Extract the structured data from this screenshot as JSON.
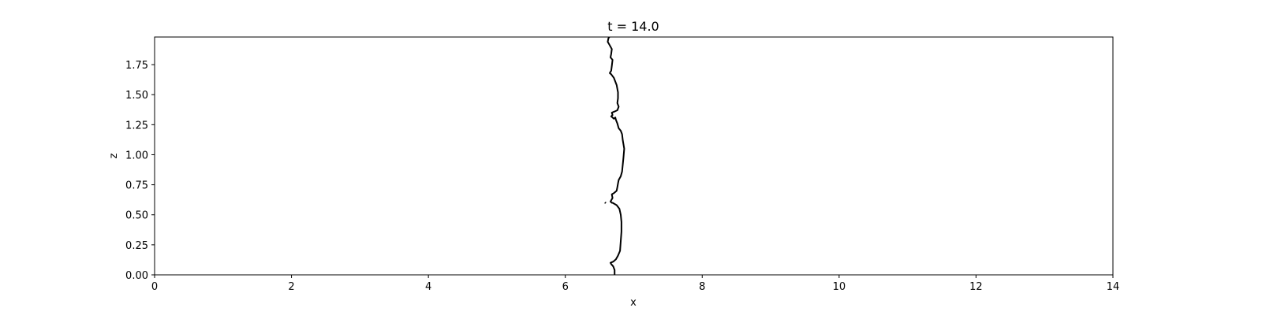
{
  "chart_data": {
    "type": "line",
    "title": "t = 14.0",
    "xlabel": "x",
    "ylabel": "z",
    "xlim": [
      0,
      14
    ],
    "ylim": [
      0,
      1.98
    ],
    "grid": false,
    "x_ticks": [
      {
        "value": 0,
        "label": "0"
      },
      {
        "value": 2,
        "label": "2"
      },
      {
        "value": 4,
        "label": "4"
      },
      {
        "value": 6,
        "label": "6"
      },
      {
        "value": 8,
        "label": "8"
      },
      {
        "value": 10,
        "label": "10"
      },
      {
        "value": 12,
        "label": "12"
      },
      {
        "value": 14,
        "label": "14"
      }
    ],
    "y_ticks": [
      {
        "value": 0.0,
        "label": "0.00"
      },
      {
        "value": 0.25,
        "label": "0.25"
      },
      {
        "value": 0.5,
        "label": "0.50"
      },
      {
        "value": 0.75,
        "label": "0.75"
      },
      {
        "value": 1.0,
        "label": "1.00"
      },
      {
        "value": 1.25,
        "label": "1.25"
      },
      {
        "value": 1.5,
        "label": "1.50"
      },
      {
        "value": 1.75,
        "label": "1.75"
      }
    ],
    "line_color": "#000000",
    "series": [
      {
        "points": [
          [
            6.72,
            0.0
          ],
          [
            6.72,
            0.04
          ],
          [
            6.7,
            0.07
          ],
          [
            6.67,
            0.09
          ],
          [
            6.66,
            0.1
          ],
          [
            6.7,
            0.11
          ],
          [
            6.74,
            0.13
          ],
          [
            6.77,
            0.16
          ],
          [
            6.8,
            0.2
          ],
          [
            6.81,
            0.28
          ],
          [
            6.82,
            0.36
          ],
          [
            6.82,
            0.44
          ],
          [
            6.81,
            0.5
          ],
          [
            6.79,
            0.55
          ],
          [
            6.75,
            0.58
          ],
          [
            6.69,
            0.6
          ],
          [
            6.68,
            0.6
          ],
          [
            6.66,
            0.61
          ],
          [
            6.69,
            0.64
          ],
          [
            6.68,
            0.67
          ],
          [
            6.71,
            0.68
          ],
          [
            6.75,
            0.7
          ],
          [
            6.76,
            0.73
          ],
          [
            6.77,
            0.76
          ],
          [
            6.78,
            0.79
          ],
          [
            6.81,
            0.82
          ],
          [
            6.83,
            0.86
          ],
          [
            6.84,
            0.92
          ],
          [
            6.85,
            0.98
          ],
          [
            6.86,
            1.05
          ],
          [
            6.84,
            1.12
          ],
          [
            6.83,
            1.17
          ],
          [
            6.81,
            1.2
          ],
          [
            6.78,
            1.22
          ],
          [
            6.76,
            1.26
          ],
          [
            6.74,
            1.29
          ],
          [
            6.73,
            1.31
          ],
          [
            6.71,
            1.3
          ],
          [
            6.69,
            1.31
          ],
          [
            6.67,
            1.32
          ],
          [
            6.69,
            1.33
          ],
          [
            6.68,
            1.35
          ],
          [
            6.72,
            1.36
          ],
          [
            6.76,
            1.37
          ],
          [
            6.78,
            1.4
          ],
          [
            6.76,
            1.43
          ],
          [
            6.77,
            1.47
          ],
          [
            6.77,
            1.52
          ],
          [
            6.75,
            1.58
          ],
          [
            6.71,
            1.64
          ],
          [
            6.67,
            1.67
          ],
          [
            6.65,
            1.68
          ],
          [
            6.67,
            1.7
          ],
          [
            6.68,
            1.74
          ],
          [
            6.69,
            1.79
          ],
          [
            6.66,
            1.81
          ],
          [
            6.67,
            1.84
          ],
          [
            6.68,
            1.88
          ],
          [
            6.64,
            1.92
          ],
          [
            6.62,
            1.94
          ],
          [
            6.63,
            1.97
          ],
          [
            6.67,
            2.0
          ]
        ]
      },
      {
        "points": [
          [
            6.58,
            0.597
          ],
          [
            6.59,
            0.603
          ]
        ]
      }
    ]
  }
}
